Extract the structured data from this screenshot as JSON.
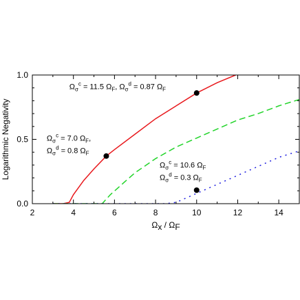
{
  "chart_data": {
    "type": "line",
    "xlabel": "Ωx / ΩF",
    "ylabel": "Logarithmic Negativity",
    "xlim": [
      2,
      15
    ],
    "ylim": [
      0,
      1.0
    ],
    "x_ticks": [
      "2",
      "4",
      "6",
      "8",
      "10",
      "12",
      "14"
    ],
    "y_ticks": [
      "0.0",
      "0.5",
      "1.0"
    ],
    "grid": false,
    "series": [
      {
        "color": "#e8181c",
        "style": "solid",
        "x": [
          3.0,
          3.5,
          3.8,
          4.0,
          4.5,
          5.0,
          5.6,
          6.0,
          7.0,
          8.0,
          9.0,
          10.0,
          11.0,
          11.9,
          12.5
        ],
        "y": [
          0.0,
          0.0,
          0.01,
          0.07,
          0.18,
          0.27,
          0.37,
          0.42,
          0.54,
          0.66,
          0.76,
          0.86,
          0.94,
          1.0,
          1.03
        ]
      },
      {
        "color": "#22d42a",
        "style": "dashed",
        "x": [
          3.0,
          5.0,
          5.4,
          5.8,
          6.5,
          7.0,
          8.0,
          9.0,
          10.0,
          11.0,
          12.0,
          13.0,
          14.0,
          15.0
        ],
        "y": [
          0.0,
          0.0,
          0.0,
          0.07,
          0.17,
          0.24,
          0.35,
          0.44,
          0.51,
          0.58,
          0.65,
          0.7,
          0.76,
          0.81
        ]
      },
      {
        "color": "#1c1ce0",
        "style": "dotted",
        "x": [
          3.0,
          6.0,
          8.5,
          9.0,
          10.0,
          11.0,
          12.0,
          13.0,
          14.0,
          15.0
        ],
        "y": [
          0.0,
          0.0,
          0.0,
          0.01,
          0.08,
          0.15,
          0.22,
          0.29,
          0.36,
          0.41
        ]
      }
    ],
    "points": [
      {
        "x": 5.6,
        "y": 0.37
      },
      {
        "x": 10.0,
        "y": 0.86
      },
      {
        "x": 10.0,
        "y": 0.105
      }
    ],
    "annotations": [
      {
        "x": 2.7,
        "y": 0.49,
        "lines": [
          [
            {
              "t": "Ω"
            },
            {
              "t": "σ",
              "sub": true
            },
            {
              "t": "c",
              "sup": true
            },
            {
              "t": " = 7.0 Ω"
            },
            {
              "t": "F",
              "sub": true
            },
            {
              "t": ","
            }
          ],
          [
            {
              "t": "Ω"
            },
            {
              "t": "σ",
              "sub": true
            },
            {
              "t": "d",
              "sup": true
            },
            {
              "t": " = 0.8 Ω"
            },
            {
              "t": "F",
              "sub": true
            }
          ]
        ]
      },
      {
        "x": 3.8,
        "y": 0.89,
        "lines": [
          [
            {
              "t": "Ω"
            },
            {
              "t": "σ",
              "sub": true
            },
            {
              "t": "c",
              "sup": true
            },
            {
              "t": " = 11.5 Ω"
            },
            {
              "t": "F",
              "sub": true
            },
            {
              "t": ",  Ω"
            },
            {
              "t": "σ",
              "sub": true
            },
            {
              "t": "d",
              "sup": true
            },
            {
              "t": " = 0.87 Ω"
            },
            {
              "t": "F",
              "sub": true
            }
          ]
        ]
      },
      {
        "x": 8.2,
        "y": 0.28,
        "lines": [
          [
            {
              "t": "Ω"
            },
            {
              "t": "σ",
              "sub": true
            },
            {
              "t": "c",
              "sup": true
            },
            {
              "t": " = 10.6 Ω"
            },
            {
              "t": "F",
              "sub": true
            }
          ],
          [
            {
              "t": "Ω"
            },
            {
              "t": "σ",
              "sub": true
            },
            {
              "t": "d",
              "sup": true
            },
            {
              "t": " = 0.3 Ω"
            },
            {
              "t": "F",
              "sub": true
            }
          ]
        ]
      }
    ]
  }
}
